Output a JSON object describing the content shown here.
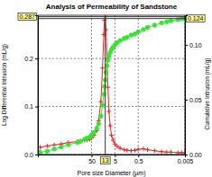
{
  "chart_data": {
    "type": "line",
    "title": "Analysis of Permeability of Sandstone",
    "x_label": "Pore size Diameter (µm)",
    "y_label": "Log Differential Intrusion (mL/g)",
    "y2_label": "Cumulative Intrusion (mL/g)",
    "log": "x",
    "grid": true,
    "xlim": [
      10000,
      0.005
    ],
    "xticks": [
      50,
      5,
      0.5,
      0.005
    ],
    "ylim": [
      0,
      0.29
    ],
    "yticks": [
      {
        "value": 0,
        "label": "0.0"
      },
      {
        "value": 0.1,
        "label": "0.1"
      },
      {
        "value": 0.2,
        "label": "0.2"
      }
    ],
    "y2lim": [
      0,
      0.127
    ],
    "y2ticks": [
      {
        "value": 0,
        "label": "0.00"
      },
      {
        "value": 0.05,
        "label": "0.05"
      },
      {
        "value": 0.1,
        "label": "0.10"
      }
    ],
    "x": [
      8000,
      4000,
      2000,
      1000,
      500,
      200,
      150,
      100,
      80,
      60,
      50,
      40,
      30,
      25,
      20,
      17,
      15,
      14,
      13,
      12,
      11,
      10,
      9,
      8,
      7,
      6,
      5,
      4,
      3,
      2,
      1.5,
      1,
      0.7,
      0.5,
      0.3,
      0.2,
      0.1,
      0.05,
      0.03,
      0.02,
      0.01,
      0.007,
      0.005
    ],
    "series": [
      {
        "color": "#ee2222",
        "marker": "plus",
        "line_style": "solid",
        "values": [
          0.015,
          0.018,
          0.02,
          0.022,
          0.025,
          0.027,
          0.028,
          0.03,
          0.03,
          0.032,
          0.035,
          0.04,
          0.05,
          0.07,
          0.11,
          0.18,
          0.25,
          0.28,
          0.287,
          0.26,
          0.2,
          0.14,
          0.09,
          0.06,
          0.04,
          0.03,
          0.022,
          0.017,
          0.013,
          0.01,
          0.009,
          0.008,
          0.009,
          0.011,
          0.012,
          0.01,
          0.008,
          0.006,
          0.005,
          0.005,
          0.004,
          0.004,
          0.004
        ]
      },
      {
        "color": "#33e633",
        "marker": "circle",
        "line_style": "solid",
        "axis": "y2",
        "values": [
          0.002,
          0.003,
          0.005,
          0.007,
          0.009,
          0.011,
          0.012,
          0.014,
          0.015,
          0.016,
          0.018,
          0.02,
          0.024,
          0.028,
          0.035,
          0.045,
          0.055,
          0.062,
          0.068,
          0.075,
          0.081,
          0.086,
          0.09,
          0.093,
          0.096,
          0.098,
          0.1,
          0.102,
          0.104,
          0.106,
          0.107,
          0.109,
          0.11,
          0.112,
          0.114,
          0.116,
          0.118,
          0.12,
          0.121,
          0.122,
          0.123,
          0.124,
          0.124
        ]
      }
    ],
    "annotations": [
      {
        "text": "13",
        "x": 13
      },
      {
        "text": "0.287",
        "y": 0.287
      },
      {
        "text": "0.124",
        "y2": 0.124
      }
    ]
  }
}
